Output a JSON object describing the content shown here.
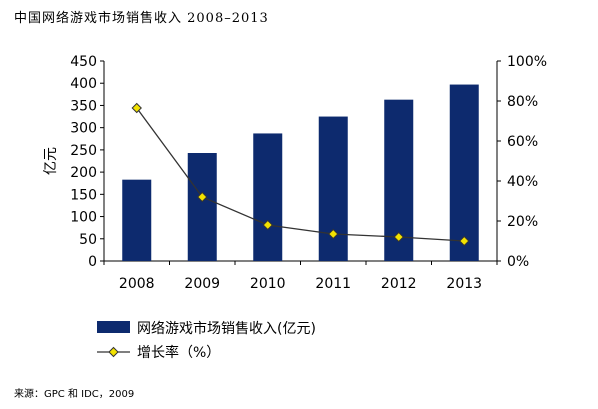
{
  "title": "中国网络游戏市场销售收入 2008–2013",
  "source": "来源：GPC 和 IDC，2009",
  "chart_data": {
    "type": "bar+line",
    "categories": [
      "2008",
      "2009",
      "2010",
      "2011",
      "2012",
      "2013"
    ],
    "series": [
      {
        "name": "网络游戏市场销售收入(亿元)",
        "type": "bar",
        "axis": "left",
        "values": [
          183,
          243,
          287,
          325,
          363,
          397
        ],
        "color": "#0d2a6e"
      },
      {
        "name": "增长率（%）",
        "type": "line",
        "axis": "right",
        "values": [
          76.5,
          32,
          18,
          13.5,
          12,
          10
        ],
        "color": "#333333",
        "marker": "diamond",
        "marker_color": "#f2e200"
      }
    ],
    "ylabel": "亿元",
    "ylim": [
      0,
      450
    ],
    "yticks": [
      0,
      50,
      100,
      150,
      200,
      250,
      300,
      350,
      400,
      450
    ],
    "y2lim": [
      0,
      100
    ],
    "y2ticks": [
      "0%",
      "20%",
      "40%",
      "60%",
      "80%",
      "100%"
    ],
    "legend": "bottom",
    "grid": false
  }
}
